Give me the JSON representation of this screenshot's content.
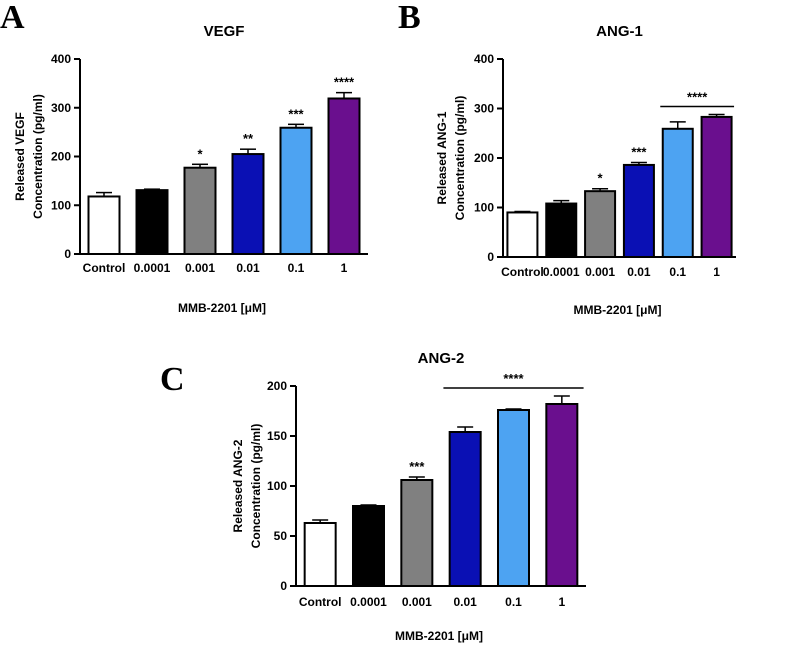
{
  "chart_data": [
    {
      "panel": "A",
      "type": "bar",
      "title": "VEGF",
      "xlabel": "MMB-2201 [μM]",
      "ylabel_lines": [
        "Released VEGF",
        "Concentration (pg/ml)"
      ],
      "ylim": [
        0,
        400
      ],
      "yticks": [
        0,
        100,
        200,
        300,
        400
      ],
      "categories": [
        "Control",
        "0.0001",
        "0.001",
        "0.01",
        "0.1",
        "1"
      ],
      "values": [
        118,
        131,
        177,
        205,
        259,
        319
      ],
      "errors": [
        8,
        2,
        7,
        10,
        7,
        12
      ],
      "colors": [
        "#ffffff",
        "#000000",
        "#808080",
        "#0a10b4",
        "#4da3f2",
        "#6a0f8e"
      ],
      "significance": [
        {
          "label": "*",
          "bars": [
            2
          ]
        },
        {
          "label": "**",
          "bars": [
            3
          ]
        },
        {
          "label": "***",
          "bars": [
            4
          ]
        },
        {
          "label": "****",
          "bars": [
            5
          ]
        }
      ]
    },
    {
      "panel": "B",
      "type": "bar",
      "title": "ANG-1",
      "xlabel": "MMB-2201 [μM]",
      "ylabel_lines": [
        "Released ANG-1",
        "Concentration (pg/ml)"
      ],
      "ylim": [
        0,
        400
      ],
      "yticks": [
        0,
        100,
        200,
        300,
        400
      ],
      "categories": [
        "Control",
        "0.0001",
        "0.001",
        "0.01",
        "0.1",
        "1"
      ],
      "values": [
        90,
        108,
        133,
        186,
        259,
        283
      ],
      "errors": [
        2,
        6,
        5,
        5,
        14,
        5
      ],
      "colors": [
        "#ffffff",
        "#000000",
        "#808080",
        "#0a10b4",
        "#4da3f2",
        "#6a0f8e"
      ],
      "significance": [
        {
          "label": "*",
          "bars": [
            2
          ]
        },
        {
          "label": "***",
          "bars": [
            3
          ]
        },
        {
          "label": "****",
          "bars": [
            4,
            5
          ]
        }
      ]
    },
    {
      "panel": "C",
      "type": "bar",
      "title": "ANG-2",
      "xlabel": "MMB-2201 [μM]",
      "ylabel_lines": [
        "Released ANG-2",
        "Concentration (pg/ml)"
      ],
      "ylim": [
        0,
        200
      ],
      "yticks": [
        0,
        50,
        100,
        150,
        200
      ],
      "categories": [
        "Control",
        "0.0001",
        "0.001",
        "0.01",
        "0.1",
        "1"
      ],
      "values": [
        63,
        80,
        106,
        154,
        176,
        182
      ],
      "errors": [
        3,
        1,
        3,
        5,
        1,
        8
      ],
      "colors": [
        "#ffffff",
        "#000000",
        "#808080",
        "#0a10b4",
        "#4da3f2",
        "#6a0f8e"
      ],
      "significance": [
        {
          "label": "***",
          "bars": [
            2
          ]
        },
        {
          "label": "****",
          "bars": [
            3,
            4,
            5
          ]
        }
      ]
    }
  ]
}
